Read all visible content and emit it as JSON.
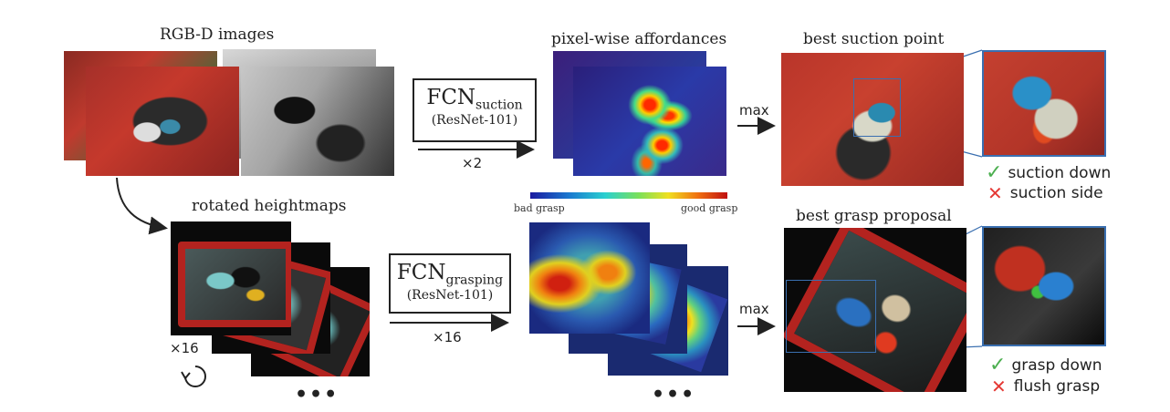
{
  "labels": {
    "rgbd": "RGB-D images",
    "affordances": "pixel-wise affordances",
    "best_suction": "best suction point",
    "rotated": "rotated heightmaps",
    "best_grasp": "best grasp proposal"
  },
  "fcn_suction": {
    "name": "FCN",
    "sub": "suction",
    "net": "(ResNet-101)",
    "mult": "×2"
  },
  "fcn_grasping": {
    "name": "FCN",
    "sub": "grasping",
    "net": "(ResNet-101)",
    "mult": "×16"
  },
  "max_label": "max",
  "colorbar": {
    "low": "bad grasp",
    "high": "good grasp"
  },
  "rotation_count": "×16",
  "ellipsis": "•••",
  "outcomes": {
    "suction_good": "suction down",
    "suction_bad": "suction side",
    "grasp_good": "grasp down",
    "grasp_bad": "flush grasp"
  },
  "icons": {
    "check": "✓",
    "cross": "✕",
    "rotate": "rotate-icon"
  },
  "colors": {
    "bin_red": "#b3231f",
    "highlight_box": "#3a6fb0",
    "check_green": "#4caf50",
    "cross_red": "#e53935"
  }
}
